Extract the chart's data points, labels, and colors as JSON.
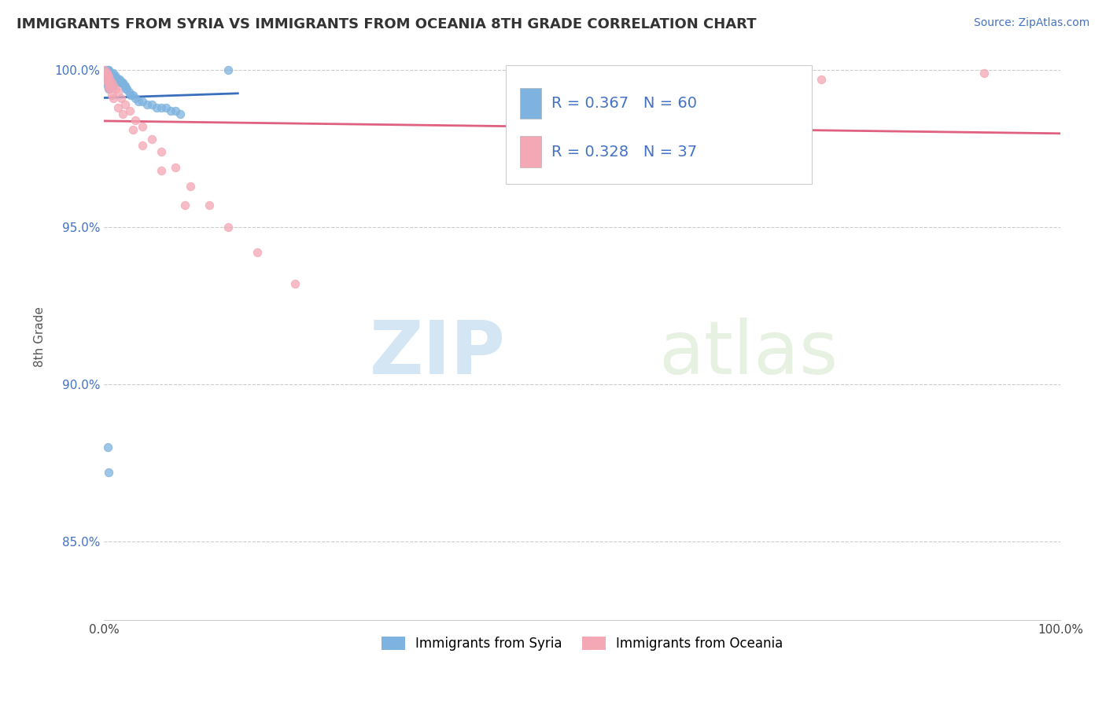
{
  "title": "IMMIGRANTS FROM SYRIA VS IMMIGRANTS FROM OCEANIA 8TH GRADE CORRELATION CHART",
  "source_text": "Source: ZipAtlas.com",
  "ylabel": "8th Grade",
  "legend_label1": "Immigrants from Syria",
  "legend_label2": "Immigrants from Oceania",
  "R1": 0.367,
  "N1": 60,
  "R2": 0.328,
  "N2": 37,
  "xlim": [
    0.0,
    1.0
  ],
  "ylim": [
    0.825,
    1.005
  ],
  "xtick_positions": [
    0.0,
    0.2,
    0.4,
    0.6,
    0.8,
    1.0
  ],
  "xtick_labels": [
    "0.0%",
    "",
    "",
    "",
    "",
    "100.0%"
  ],
  "ytick_positions": [
    0.85,
    0.9,
    0.95,
    1.0
  ],
  "ytick_labels": [
    "85.0%",
    "90.0%",
    "95.0%",
    "100.0%"
  ],
  "color1": "#7eb3e0",
  "color2": "#f4a7b5",
  "trend_color1": "#3a6fbd",
  "trend_color2": "#e06080",
  "watermark_zip": "ZIP",
  "watermark_atlas": "atlas",
  "syria_x": [
    0.001,
    0.001,
    0.002,
    0.002,
    0.002,
    0.003,
    0.003,
    0.003,
    0.004,
    0.004,
    0.004,
    0.004,
    0.005,
    0.005,
    0.005,
    0.005,
    0.006,
    0.006,
    0.006,
    0.007,
    0.007,
    0.008,
    0.008,
    0.009,
    0.009,
    0.01,
    0.01,
    0.01,
    0.011,
    0.012,
    0.012,
    0.013,
    0.014,
    0.015,
    0.016,
    0.017,
    0.018,
    0.019,
    0.02,
    0.021,
    0.022,
    0.023,
    0.024,
    0.026,
    0.028,
    0.03,
    0.033,
    0.036,
    0.04,
    0.045,
    0.05,
    0.055,
    0.06,
    0.065,
    0.07,
    0.075,
    0.08,
    0.004,
    0.005,
    0.13
  ],
  "syria_y": [
    0.999,
    0.997,
    1.0,
    0.998,
    0.996,
    0.999,
    0.998,
    0.996,
    1.0,
    0.999,
    0.997,
    0.995,
    1.0,
    0.999,
    0.997,
    0.994,
    0.999,
    0.997,
    0.995,
    0.999,
    0.997,
    0.998,
    0.996,
    0.998,
    0.996,
    0.999,
    0.997,
    0.995,
    0.998,
    0.998,
    0.996,
    0.997,
    0.997,
    0.997,
    0.997,
    0.996,
    0.996,
    0.996,
    0.996,
    0.995,
    0.995,
    0.994,
    0.994,
    0.993,
    0.992,
    0.992,
    0.991,
    0.99,
    0.99,
    0.989,
    0.989,
    0.988,
    0.988,
    0.988,
    0.987,
    0.987,
    0.986,
    0.88,
    0.872,
    1.0
  ],
  "oceania_x": [
    0.001,
    0.002,
    0.003,
    0.004,
    0.005,
    0.006,
    0.008,
    0.01,
    0.012,
    0.015,
    0.018,
    0.022,
    0.027,
    0.033,
    0.04,
    0.05,
    0.06,
    0.075,
    0.09,
    0.11,
    0.13,
    0.16,
    0.2,
    0.003,
    0.004,
    0.005,
    0.006,
    0.008,
    0.01,
    0.015,
    0.02,
    0.03,
    0.04,
    0.06,
    0.085,
    0.75,
    0.92
  ],
  "oceania_y": [
    1.0,
    0.999,
    0.999,
    0.998,
    0.998,
    0.997,
    0.996,
    0.995,
    0.994,
    0.993,
    0.991,
    0.989,
    0.987,
    0.984,
    0.982,
    0.978,
    0.974,
    0.969,
    0.963,
    0.957,
    0.95,
    0.942,
    0.932,
    0.997,
    0.996,
    0.995,
    0.994,
    0.992,
    0.991,
    0.988,
    0.986,
    0.981,
    0.976,
    0.968,
    0.957,
    0.997,
    0.999
  ]
}
